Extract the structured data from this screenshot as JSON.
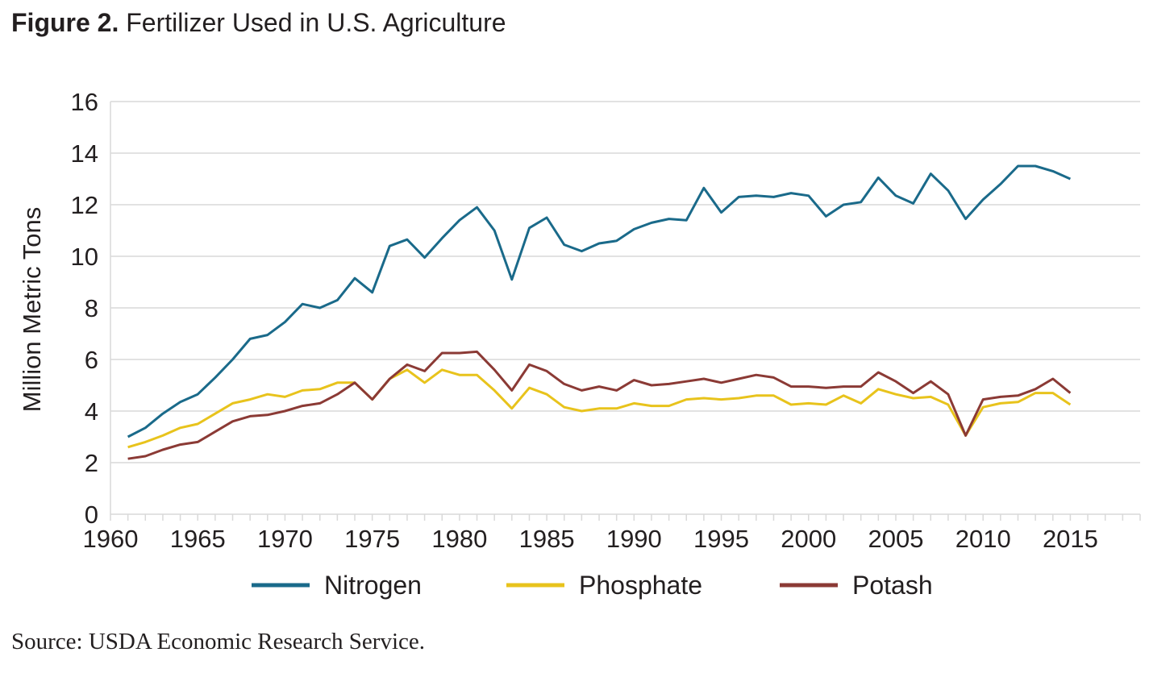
{
  "figure": {
    "label": "Figure 2.",
    "title": "Fertilizer Used in U.S. Agriculture",
    "source": "Source: USDA Economic Research Service."
  },
  "chart_data": {
    "type": "line",
    "title": "Figure 2. Fertilizer Used in U.S. Agriculture",
    "xlabel": "",
    "ylabel": "Million Metric Tons",
    "xlim": [
      1960,
      2019
    ],
    "ylim": [
      0,
      16
    ],
    "xticks": [
      1960,
      1965,
      1970,
      1975,
      1980,
      1985,
      1990,
      1995,
      2000,
      2005,
      2010,
      2015
    ],
    "yticks": [
      0,
      2,
      4,
      6,
      8,
      10,
      12,
      14,
      16
    ],
    "grid": "horizontal",
    "legend": "bottom",
    "x": [
      1961,
      1962,
      1963,
      1964,
      1965,
      1966,
      1967,
      1968,
      1969,
      1970,
      1971,
      1972,
      1973,
      1974,
      1975,
      1976,
      1977,
      1978,
      1979,
      1980,
      1981,
      1982,
      1983,
      1984,
      1985,
      1986,
      1987,
      1988,
      1989,
      1990,
      1991,
      1992,
      1993,
      1994,
      1995,
      1996,
      1997,
      1998,
      1999,
      2000,
      2001,
      2002,
      2003,
      2004,
      2005,
      2006,
      2007,
      2008,
      2009,
      2010,
      2011,
      2012,
      2013,
      2014,
      2015
    ],
    "series": [
      {
        "name": "Nitrogen",
        "color": "#1a6a8a",
        "values": [
          3.0,
          3.35,
          3.9,
          4.35,
          4.65,
          5.3,
          6.0,
          6.8,
          6.95,
          7.45,
          8.15,
          8.0,
          8.3,
          9.15,
          8.6,
          10.4,
          10.65,
          9.95,
          10.7,
          11.4,
          11.9,
          11.0,
          9.1,
          11.1,
          11.5,
          10.45,
          10.2,
          10.5,
          10.6,
          11.05,
          11.3,
          11.45,
          11.4,
          12.65,
          11.7,
          12.3,
          12.35,
          12.3,
          12.45,
          12.35,
          11.55,
          12.0,
          12.1,
          13.05,
          12.35,
          12.05,
          13.2,
          12.55,
          11.45,
          12.2,
          12.8,
          13.5,
          13.5,
          13.3,
          13.0
        ]
      },
      {
        "name": "Phosphate",
        "color": "#e8c31c",
        "values": [
          2.6,
          2.8,
          3.05,
          3.35,
          3.5,
          3.9,
          4.3,
          4.45,
          4.65,
          4.55,
          4.8,
          4.85,
          5.1,
          5.1,
          4.45,
          5.25,
          5.6,
          5.1,
          5.6,
          5.4,
          5.4,
          4.8,
          4.1,
          4.9,
          4.65,
          4.15,
          4.0,
          4.1,
          4.1,
          4.3,
          4.2,
          4.2,
          4.45,
          4.5,
          4.45,
          4.5,
          4.6,
          4.6,
          4.25,
          4.3,
          4.25,
          4.6,
          4.3,
          4.85,
          4.65,
          4.5,
          4.55,
          4.25,
          3.05,
          4.15,
          4.3,
          4.35,
          4.7,
          4.7,
          4.25
        ]
      },
      {
        "name": "Potash",
        "color": "#8b3a35",
        "values": [
          2.15,
          2.25,
          2.5,
          2.7,
          2.8,
          3.2,
          3.6,
          3.8,
          3.85,
          4.0,
          4.2,
          4.3,
          4.65,
          5.1,
          4.45,
          5.25,
          5.8,
          5.55,
          6.25,
          6.25,
          6.3,
          5.6,
          4.8,
          5.8,
          5.55,
          5.05,
          4.8,
          4.95,
          4.8,
          5.2,
          5.0,
          5.05,
          5.15,
          5.25,
          5.1,
          5.25,
          5.4,
          5.3,
          4.95,
          4.95,
          4.9,
          4.95,
          4.95,
          5.5,
          5.15,
          4.7,
          5.15,
          4.65,
          3.05,
          4.45,
          4.55,
          4.6,
          4.85,
          5.25,
          4.7
        ]
      }
    ]
  }
}
